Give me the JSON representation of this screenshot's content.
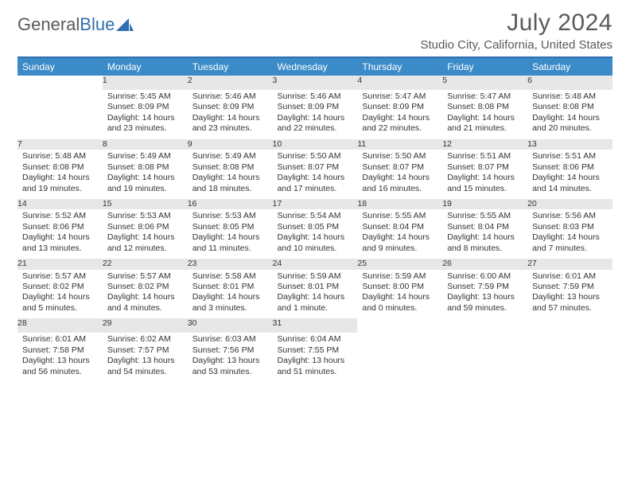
{
  "logo": {
    "word1": "General",
    "word2": "Blue"
  },
  "title": "July 2024",
  "location": "Studio City, California, United States",
  "weekdays": [
    "Sunday",
    "Monday",
    "Tuesday",
    "Wednesday",
    "Thursday",
    "Friday",
    "Saturday"
  ],
  "first_weekday_index": 1,
  "days": [
    {
      "n": 1,
      "sr": "5:45 AM",
      "ss": "8:09 PM",
      "dl": "14 hours and 23 minutes."
    },
    {
      "n": 2,
      "sr": "5:46 AM",
      "ss": "8:09 PM",
      "dl": "14 hours and 23 minutes."
    },
    {
      "n": 3,
      "sr": "5:46 AM",
      "ss": "8:09 PM",
      "dl": "14 hours and 22 minutes."
    },
    {
      "n": 4,
      "sr": "5:47 AM",
      "ss": "8:09 PM",
      "dl": "14 hours and 22 minutes."
    },
    {
      "n": 5,
      "sr": "5:47 AM",
      "ss": "8:08 PM",
      "dl": "14 hours and 21 minutes."
    },
    {
      "n": 6,
      "sr": "5:48 AM",
      "ss": "8:08 PM",
      "dl": "14 hours and 20 minutes."
    },
    {
      "n": 7,
      "sr": "5:48 AM",
      "ss": "8:08 PM",
      "dl": "14 hours and 19 minutes."
    },
    {
      "n": 8,
      "sr": "5:49 AM",
      "ss": "8:08 PM",
      "dl": "14 hours and 19 minutes."
    },
    {
      "n": 9,
      "sr": "5:49 AM",
      "ss": "8:08 PM",
      "dl": "14 hours and 18 minutes."
    },
    {
      "n": 10,
      "sr": "5:50 AM",
      "ss": "8:07 PM",
      "dl": "14 hours and 17 minutes."
    },
    {
      "n": 11,
      "sr": "5:50 AM",
      "ss": "8:07 PM",
      "dl": "14 hours and 16 minutes."
    },
    {
      "n": 12,
      "sr": "5:51 AM",
      "ss": "8:07 PM",
      "dl": "14 hours and 15 minutes."
    },
    {
      "n": 13,
      "sr": "5:51 AM",
      "ss": "8:06 PM",
      "dl": "14 hours and 14 minutes."
    },
    {
      "n": 14,
      "sr": "5:52 AM",
      "ss": "8:06 PM",
      "dl": "14 hours and 13 minutes."
    },
    {
      "n": 15,
      "sr": "5:53 AM",
      "ss": "8:06 PM",
      "dl": "14 hours and 12 minutes."
    },
    {
      "n": 16,
      "sr": "5:53 AM",
      "ss": "8:05 PM",
      "dl": "14 hours and 11 minutes."
    },
    {
      "n": 17,
      "sr": "5:54 AM",
      "ss": "8:05 PM",
      "dl": "14 hours and 10 minutes."
    },
    {
      "n": 18,
      "sr": "5:55 AM",
      "ss": "8:04 PM",
      "dl": "14 hours and 9 minutes."
    },
    {
      "n": 19,
      "sr": "5:55 AM",
      "ss": "8:04 PM",
      "dl": "14 hours and 8 minutes."
    },
    {
      "n": 20,
      "sr": "5:56 AM",
      "ss": "8:03 PM",
      "dl": "14 hours and 7 minutes."
    },
    {
      "n": 21,
      "sr": "5:57 AM",
      "ss": "8:02 PM",
      "dl": "14 hours and 5 minutes."
    },
    {
      "n": 22,
      "sr": "5:57 AM",
      "ss": "8:02 PM",
      "dl": "14 hours and 4 minutes."
    },
    {
      "n": 23,
      "sr": "5:58 AM",
      "ss": "8:01 PM",
      "dl": "14 hours and 3 minutes."
    },
    {
      "n": 24,
      "sr": "5:59 AM",
      "ss": "8:01 PM",
      "dl": "14 hours and 1 minute."
    },
    {
      "n": 25,
      "sr": "5:59 AM",
      "ss": "8:00 PM",
      "dl": "14 hours and 0 minutes."
    },
    {
      "n": 26,
      "sr": "6:00 AM",
      "ss": "7:59 PM",
      "dl": "13 hours and 59 minutes."
    },
    {
      "n": 27,
      "sr": "6:01 AM",
      "ss": "7:59 PM",
      "dl": "13 hours and 57 minutes."
    },
    {
      "n": 28,
      "sr": "6:01 AM",
      "ss": "7:58 PM",
      "dl": "13 hours and 56 minutes."
    },
    {
      "n": 29,
      "sr": "6:02 AM",
      "ss": "7:57 PM",
      "dl": "13 hours and 54 minutes."
    },
    {
      "n": 30,
      "sr": "6:03 AM",
      "ss": "7:56 PM",
      "dl": "13 hours and 53 minutes."
    },
    {
      "n": 31,
      "sr": "6:04 AM",
      "ss": "7:55 PM",
      "dl": "13 hours and 51 minutes."
    }
  ],
  "labels": {
    "sunrise": "Sunrise:",
    "sunset": "Sunset:",
    "daylight": "Daylight:"
  },
  "colors": {
    "header_bg": "#3b8bc8",
    "rule": "#2f6fb0",
    "daynum_bg": "#e7e7e7",
    "text": "#333333",
    "muted": "#5a5a5a"
  }
}
